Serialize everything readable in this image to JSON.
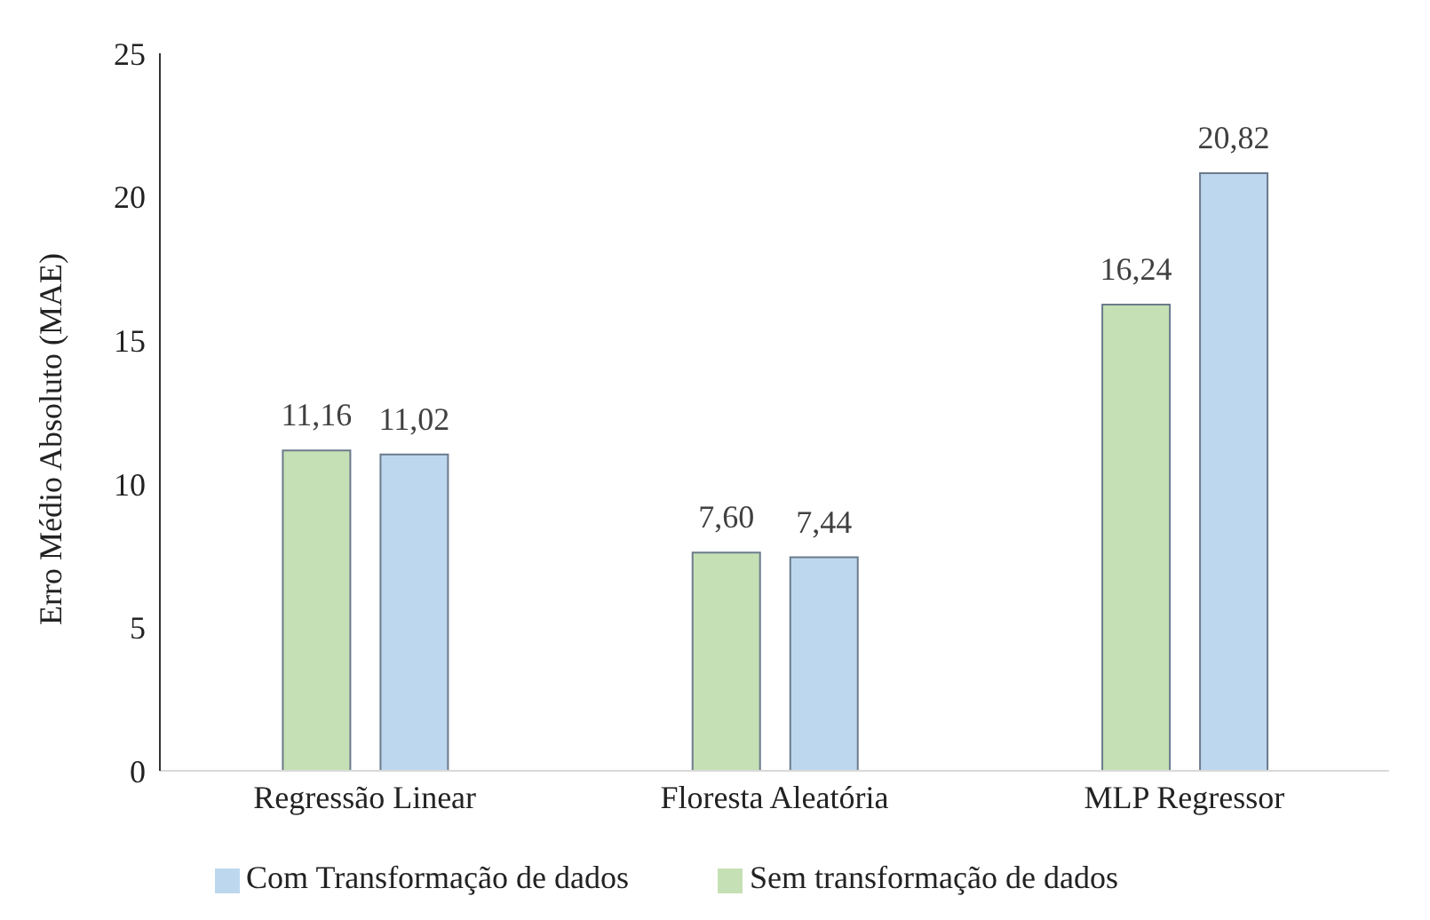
{
  "chart_data": {
    "type": "bar",
    "ylabel": "Erro Médio Absoluto (MAE)",
    "categories": [
      "Regressão Linear",
      "Floresta Aleatória",
      "MLP Regressor"
    ],
    "series": [
      {
        "name": "Sem transformação de dados",
        "color": "#c5e0b4",
        "values": [
          11.16,
          7.6,
          16.24
        ],
        "value_labels": [
          "11,16",
          "7,60",
          "16,24"
        ]
      },
      {
        "name": "Com Transformação de dados",
        "color": "#bdd7ee",
        "values": [
          11.02,
          7.44,
          20.82
        ],
        "value_labels": [
          "11,02",
          "7,44",
          "20,82"
        ]
      }
    ],
    "ylim": [
      0,
      25
    ],
    "yticks": [
      0,
      5,
      10,
      15,
      20,
      25
    ],
    "grid": false,
    "legend": "bottom"
  }
}
